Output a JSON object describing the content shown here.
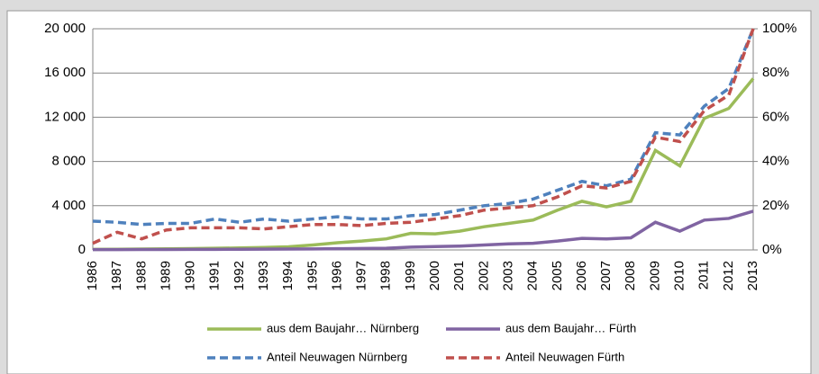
{
  "chart_data": {
    "type": "line",
    "categories": [
      "1986",
      "1987",
      "1988",
      "1989",
      "1990",
      "1991",
      "1992",
      "1993",
      "1994",
      "1995",
      "1996",
      "1997",
      "1998",
      "1999",
      "2000",
      "2001",
      "2002",
      "2003",
      "2004",
      "2005",
      "2006",
      "2007",
      "2008",
      "2009",
      "2010",
      "2011",
      "2012",
      "2013"
    ],
    "series": [
      {
        "name": "aus dem Baujahr… Nürnberg",
        "color": "#9bbb59",
        "dashed": false,
        "values": [
          50,
          60,
          80,
          100,
          120,
          150,
          180,
          220,
          280,
          450,
          650,
          800,
          1000,
          1500,
          1450,
          1700,
          2100,
          2400,
          2700,
          3600,
          4400,
          3900,
          4400,
          9000,
          7600,
          11900,
          12800,
          15500
        ]
      },
      {
        "name": "aus dem Baujahr… Fürth",
        "color": "#8064a2",
        "dashed": false,
        "values": [
          30,
          35,
          40,
          45,
          50,
          55,
          60,
          70,
          80,
          90,
          110,
          130,
          150,
          250,
          300,
          350,
          450,
          550,
          600,
          800,
          1050,
          1000,
          1100,
          2500,
          1700,
          2700,
          2850,
          3500
        ]
      },
      {
        "name": "Anteil Neuwagen Nürnberg",
        "color": "#4f81bd",
        "dashed": true,
        "axis": "y2",
        "values": [
          13,
          12.5,
          11.5,
          12,
          12,
          14,
          12.5,
          14,
          13,
          14,
          15,
          14,
          14,
          15.5,
          16,
          18,
          20,
          21,
          23,
          27,
          31,
          29,
          32,
          53,
          52,
          65,
          73,
          100
        ]
      },
      {
        "name": "Anteil Neuwagen Fürth",
        "color": "#c0504d",
        "dashed": true,
        "axis": "y2",
        "values": [
          3,
          8,
          5,
          9,
          10,
          10,
          10,
          9.5,
          10.5,
          11.5,
          11.5,
          11,
          12,
          12.5,
          14,
          15.5,
          18,
          19,
          20,
          24,
          29,
          28,
          31,
          51,
          49,
          63,
          70,
          100
        ]
      }
    ],
    "ylim": [
      0,
      20000
    ],
    "yticks": [
      0,
      {
        "value": 4000,
        "label": "4 000"
      },
      {
        "value": 8000,
        "label": "8 000"
      },
      {
        "value": 12000,
        "label": "12 000"
      },
      {
        "value": 16000,
        "label": "16 000"
      },
      {
        "value": 20000,
        "label": "20 000"
      }
    ],
    "y2lim": [
      0,
      100
    ],
    "y2ticks": [
      {
        "value": 0,
        "label": "0%"
      },
      {
        "value": 20,
        "label": "20%"
      },
      {
        "value": 40,
        "label": "40%"
      },
      {
        "value": 60,
        "label": "60%"
      },
      {
        "value": 80,
        "label": "80%"
      },
      {
        "value": 100,
        "label": "100%"
      }
    ],
    "grid": true,
    "legend": "bottom"
  }
}
